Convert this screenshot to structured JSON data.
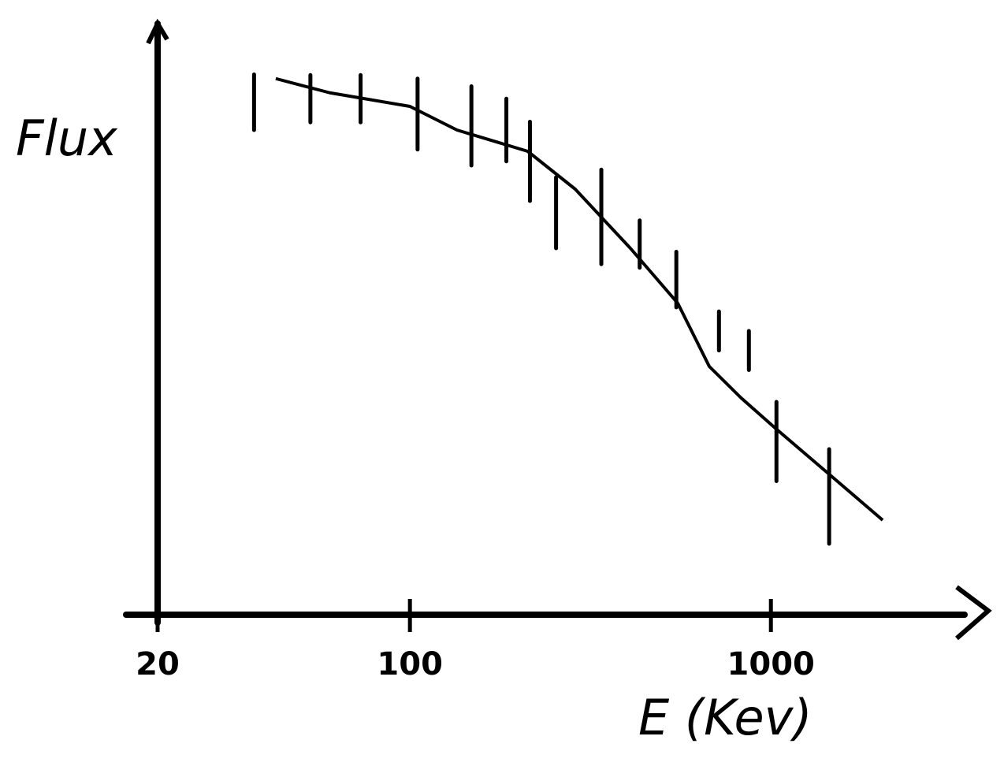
{
  "chart_data": {
    "type": "errorbar",
    "xlabel": "E (Kev)",
    "ylabel": "Flux",
    "xscale": "log",
    "xlim": [
      20,
      4000
    ],
    "xticks": [
      20,
      100,
      1000
    ],
    "ylim": [
      0,
      100
    ],
    "color": "#000000",
    "series": [
      {
        "x": [
          37,
          53,
          73,
          105,
          148,
          185,
          215,
          254,
          339,
          433,
          547,
          718,
          869,
          1036,
          1450
        ],
        "values": [
          86.7,
          87.3,
          87.3,
          84.7,
          82.7,
          82,
          76.7,
          68,
          67.3,
          62.7,
          56.7,
          48,
          44.7,
          29.3,
          20
        ],
        "errors": [
          4.7,
          4,
          4,
          6,
          6.7,
          5.3,
          6.7,
          6,
          8,
          4,
          4.7,
          3.3,
          3.3,
          6.7,
          8
        ]
      },
      {
        "x": [
          42.5,
          60,
          100,
          135,
          212,
          287,
          408,
          552,
          675,
          826,
          1040,
          1435,
          2040
        ],
        "values": [
          90.7,
          88.3,
          86,
          82,
          78.4,
          72,
          62,
          52.7,
          42,
          36.7,
          31.3,
          24,
          16
        ]
      }
    ]
  }
}
